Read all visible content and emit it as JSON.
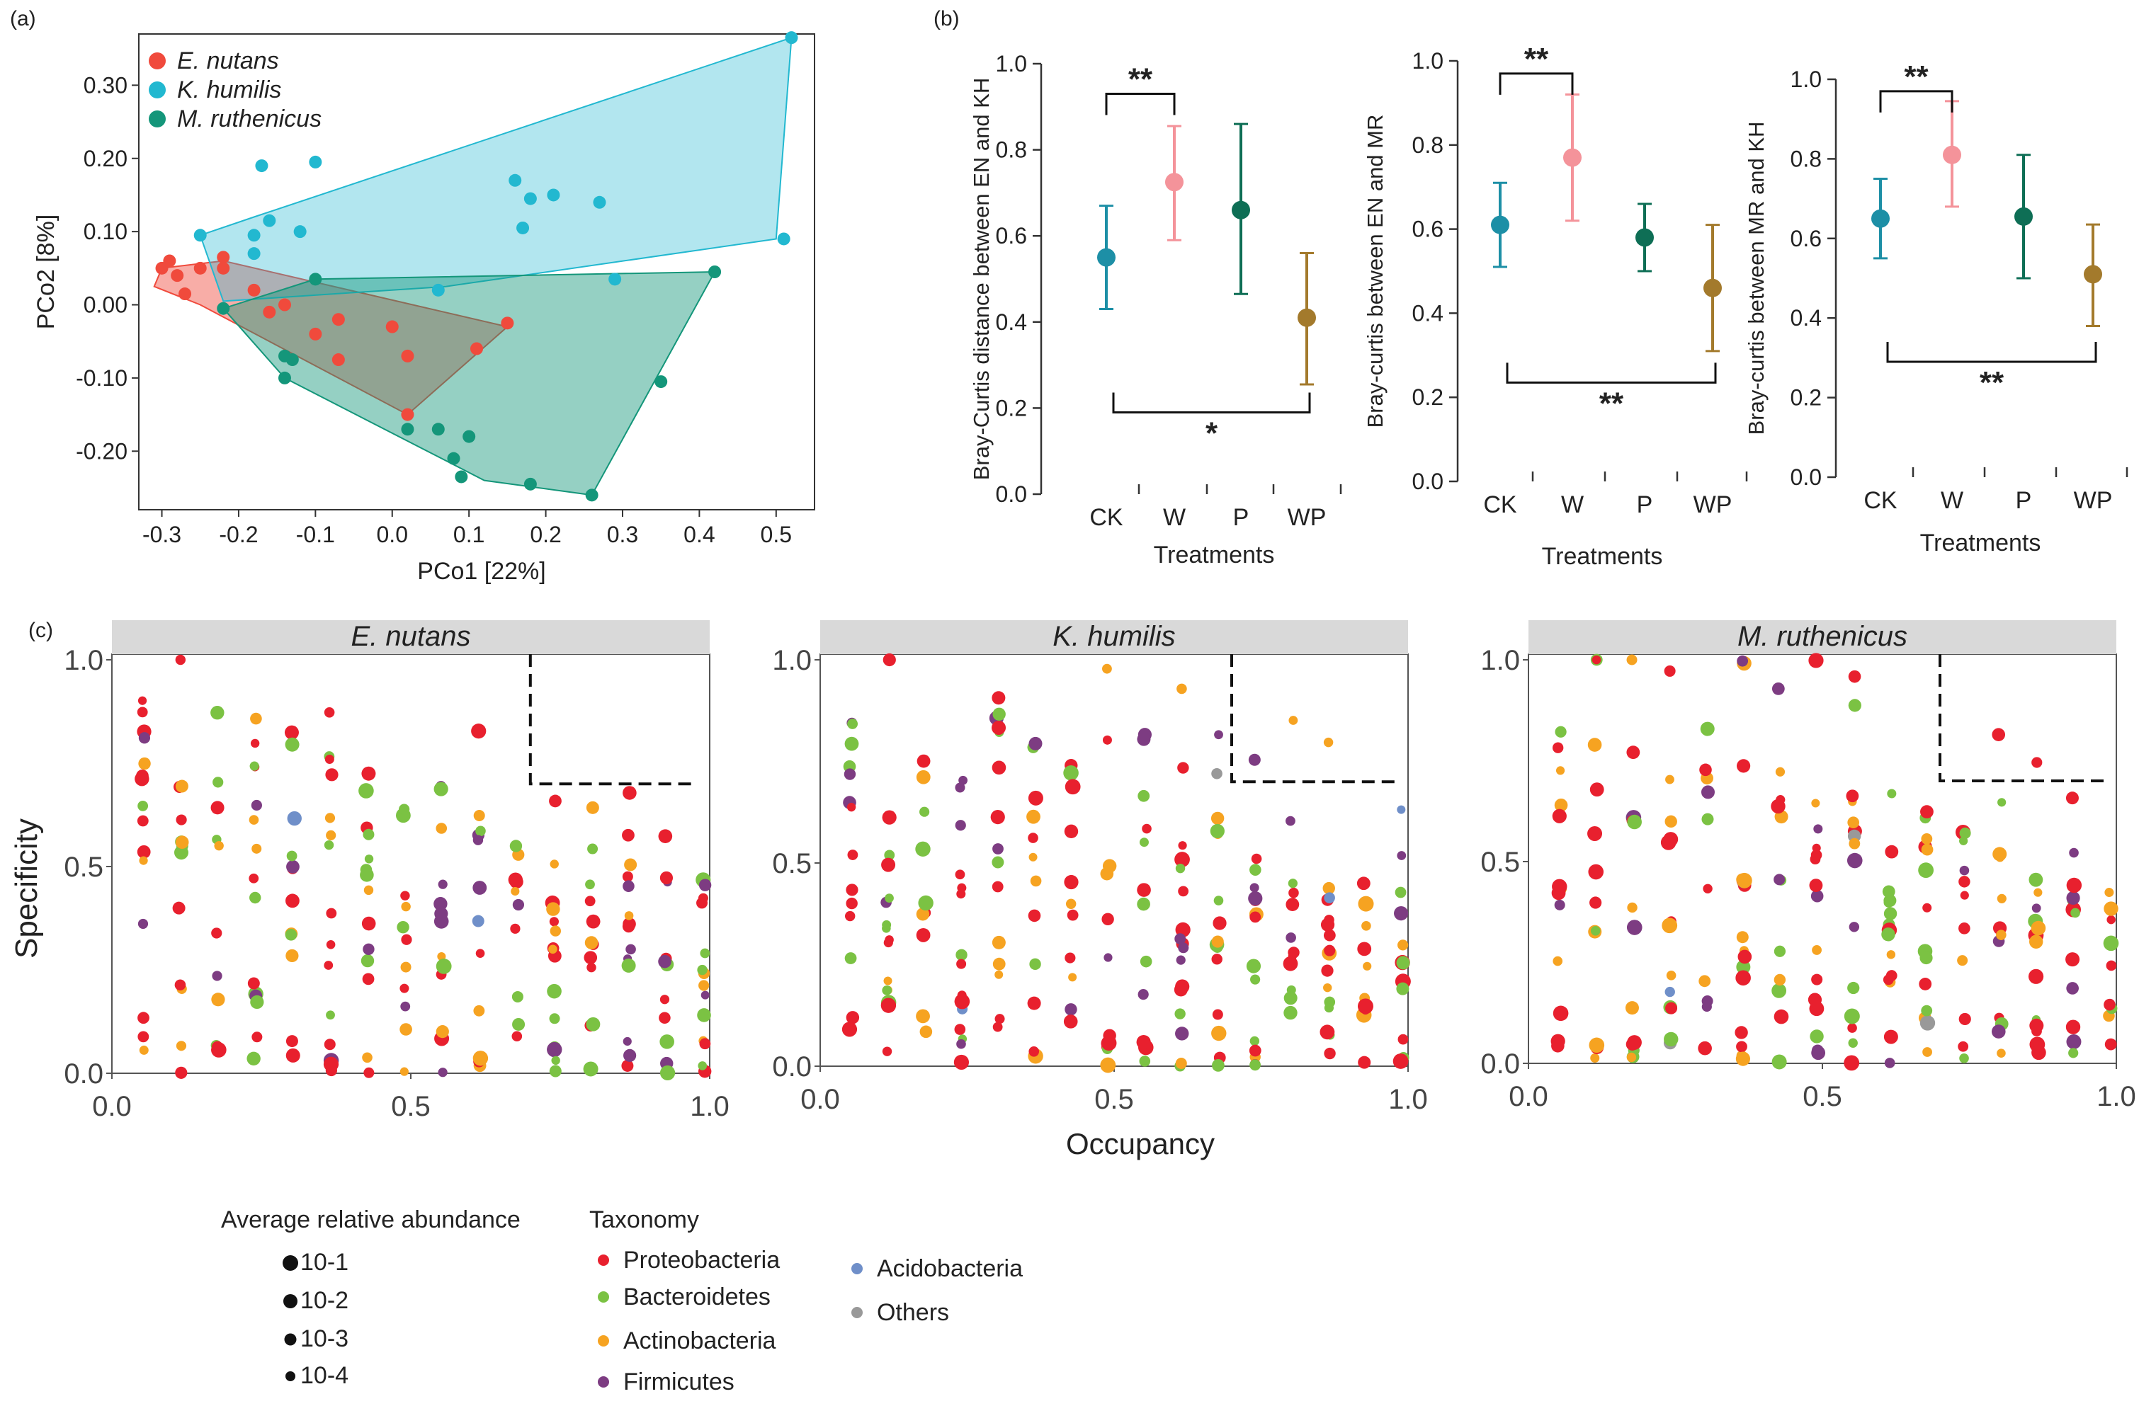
{
  "colors": {
    "en": "#f04a3c",
    "kh": "#22b8d0",
    "mr": "#14967a",
    "ck": "#1d8fa6",
    "w": "#f4939a",
    "p": "#0e6e55",
    "wp": "#a37a2c",
    "proteo": "#e8202e",
    "bactero": "#7bc243",
    "actino": "#f6a321",
    "firmi": "#7d3c82",
    "acido": "#6f8fc9",
    "others": "#999999",
    "strip": "#d9d9d9"
  },
  "chart_data": [
    {
      "id": "a",
      "panel_label": "(a)",
      "type": "scatter",
      "xlabel": "PCo1 [22%]",
      "ylabel": "PCo2 [8%]",
      "xlim": [
        -0.33,
        0.55
      ],
      "ylim": [
        -0.28,
        0.37
      ],
      "xticks": [
        "-0.3",
        "-0.2",
        "-0.1",
        "0.0",
        "0.1",
        "0.2",
        "0.3",
        "0.4",
        "0.5"
      ],
      "yticks": [
        "-0.20",
        "-0.10",
        "0.00",
        "0.10",
        "0.20",
        "0.30"
      ],
      "legend": [
        "E. nutans",
        "K. humilis",
        "M. ruthenicus"
      ],
      "series": [
        {
          "name": "E. nutans",
          "color_key": "en",
          "hull": [
            [
              -0.3,
              0.05
            ],
            [
              -0.22,
              0.06
            ],
            [
              0.15,
              -0.03
            ],
            [
              0.02,
              -0.15
            ],
            [
              -0.25,
              0.0
            ],
            [
              -0.31,
              0.025
            ]
          ],
          "points": [
            [
              -0.3,
              0.05
            ],
            [
              -0.29,
              0.06
            ],
            [
              -0.28,
              0.04
            ],
            [
              -0.27,
              0.015
            ],
            [
              -0.25,
              0.05
            ],
            [
              -0.22,
              0.065
            ],
            [
              -0.22,
              0.05
            ],
            [
              -0.18,
              0.02
            ],
            [
              -0.16,
              -0.01
            ],
            [
              -0.14,
              0.0
            ],
            [
              -0.1,
              -0.04
            ],
            [
              -0.07,
              -0.02
            ],
            [
              -0.07,
              -0.075
            ],
            [
              0.0,
              -0.03
            ],
            [
              0.02,
              -0.07
            ],
            [
              0.02,
              -0.15
            ],
            [
              0.11,
              -0.06
            ],
            [
              0.15,
              -0.025
            ]
          ]
        },
        {
          "name": "K. humilis",
          "color_key": "kh",
          "hull": [
            [
              -0.25,
              0.095
            ],
            [
              -0.18,
              0.12
            ],
            [
              0.52,
              0.365
            ],
            [
              0.5,
              0.09
            ],
            [
              0.07,
              0.025
            ],
            [
              -0.22,
              0.005
            ]
          ],
          "points": [
            [
              -0.25,
              0.095
            ],
            [
              -0.17,
              0.19
            ],
            [
              -0.16,
              0.115
            ],
            [
              -0.18,
              0.095
            ],
            [
              -0.18,
              0.07
            ],
            [
              -0.12,
              0.1
            ],
            [
              -0.1,
              0.195
            ],
            [
              0.06,
              0.02
            ],
            [
              0.16,
              0.17
            ],
            [
              0.17,
              0.105
            ],
            [
              0.18,
              0.145
            ],
            [
              0.21,
              0.15
            ],
            [
              0.27,
              0.14
            ],
            [
              0.29,
              0.035
            ],
            [
              0.51,
              0.09
            ],
            [
              0.52,
              0.365
            ]
          ]
        },
        {
          "name": "M. ruthenicus",
          "color_key": "mr",
          "hull": [
            [
              -0.22,
              -0.005
            ],
            [
              -0.1,
              0.035
            ],
            [
              0.42,
              0.045
            ],
            [
              0.26,
              -0.26
            ],
            [
              0.12,
              -0.24
            ],
            [
              -0.14,
              -0.1
            ]
          ],
          "points": [
            [
              -0.22,
              -0.005
            ],
            [
              -0.14,
              -0.07
            ],
            [
              -0.13,
              -0.075
            ],
            [
              -0.14,
              -0.1
            ],
            [
              -0.1,
              0.035
            ],
            [
              0.02,
              -0.17
            ],
            [
              0.06,
              -0.17
            ],
            [
              0.08,
              -0.21
            ],
            [
              0.09,
              -0.235
            ],
            [
              0.1,
              -0.18
            ],
            [
              0.18,
              -0.245
            ],
            [
              0.26,
              -0.26
            ],
            [
              0.35,
              -0.105
            ],
            [
              0.42,
              0.045
            ]
          ]
        }
      ]
    },
    {
      "id": "b1",
      "panel_label": "(b)",
      "type": "scatter",
      "ylabel": "Bray-Curtis distance between EN and KH",
      "xlabel": "Treatments",
      "categories": [
        "CK",
        "W",
        "P",
        "WP"
      ],
      "ylim": [
        0.0,
        1.0
      ],
      "yticks": [
        "0.0",
        "0.2",
        "0.4",
        "0.6",
        "0.8",
        "1.0"
      ],
      "means": [
        0.55,
        0.725,
        0.66,
        0.41
      ],
      "lower": [
        0.43,
        0.59,
        0.465,
        0.255
      ],
      "upper": [
        0.67,
        0.855,
        0.86,
        0.56
      ],
      "top_bracket": {
        "from": "CK",
        "to": "W",
        "y": 0.93,
        "label": "**"
      },
      "bottom_bracket": {
        "from": "CK",
        "to": "WP",
        "y": 0.19,
        "label": "*"
      }
    },
    {
      "id": "b2",
      "type": "scatter",
      "ylabel": "Bray-curtis between EN and MR",
      "xlabel": "Treatments",
      "categories": [
        "CK",
        "W",
        "P",
        "WP"
      ],
      "ylim": [
        0.0,
        1.0
      ],
      "yticks": [
        "0.0",
        "0.2",
        "0.4",
        "0.6",
        "0.8",
        "1.0"
      ],
      "means": [
        0.61,
        0.77,
        0.58,
        0.46
      ],
      "lower": [
        0.51,
        0.62,
        0.5,
        0.31
      ],
      "upper": [
        0.71,
        0.92,
        0.66,
        0.61
      ],
      "top_bracket": {
        "from": "CK",
        "to": "W",
        "y": 0.97,
        "label": "**"
      },
      "bottom_bracket": {
        "from": "CK",
        "to": "WP",
        "y": 0.235,
        "label": "**"
      }
    },
    {
      "id": "b3",
      "type": "scatter",
      "ylabel": "Bray-curtis between MR and KH",
      "xlabel": "Treatments",
      "categories": [
        "CK",
        "W",
        "P",
        "WP"
      ],
      "ylim": [
        0.0,
        1.0
      ],
      "yticks": [
        "0.0",
        "0.2",
        "0.4",
        "0.6",
        "0.8",
        "1.0"
      ],
      "means": [
        0.65,
        0.81,
        0.655,
        0.51
      ],
      "lower": [
        0.55,
        0.68,
        0.5,
        0.38
      ],
      "upper": [
        0.75,
        0.945,
        0.81,
        0.635
      ],
      "top_bracket": {
        "from": "CK",
        "to": "W",
        "y": 0.97,
        "label": "**"
      },
      "bottom_bracket": {
        "from": "CK",
        "to": "WP",
        "y": 0.29,
        "label": "**"
      }
    },
    {
      "id": "c",
      "panel_label": "(c)",
      "type": "scatter",
      "xlabel": "Occupancy",
      "ylabel": "Specificity",
      "xlim": [
        0.0,
        1.0
      ],
      "ylim": [
        0.0,
        1.0
      ],
      "xticks": [
        "0.0",
        "0.5",
        "1.0"
      ],
      "yticks": [
        "0.0",
        "0.5",
        "1.0"
      ],
      "facets": [
        "E. nutans",
        "K. humilis",
        "M. ruthenicus"
      ],
      "thresholds": {
        "occupancy": 0.7,
        "specificity": 0.7
      },
      "size_legend_title": "Average relative abundance",
      "size_legend": [
        "10-1",
        "10-2",
        "10-3",
        "10-4"
      ],
      "taxonomy_legend_title": "Taxonomy",
      "taxonomy": [
        "Proteobacteria",
        "Bacteroidetes",
        "Actinobacteria",
        "Firmicutes",
        "Acidobacteria",
        "Others"
      ]
    }
  ]
}
